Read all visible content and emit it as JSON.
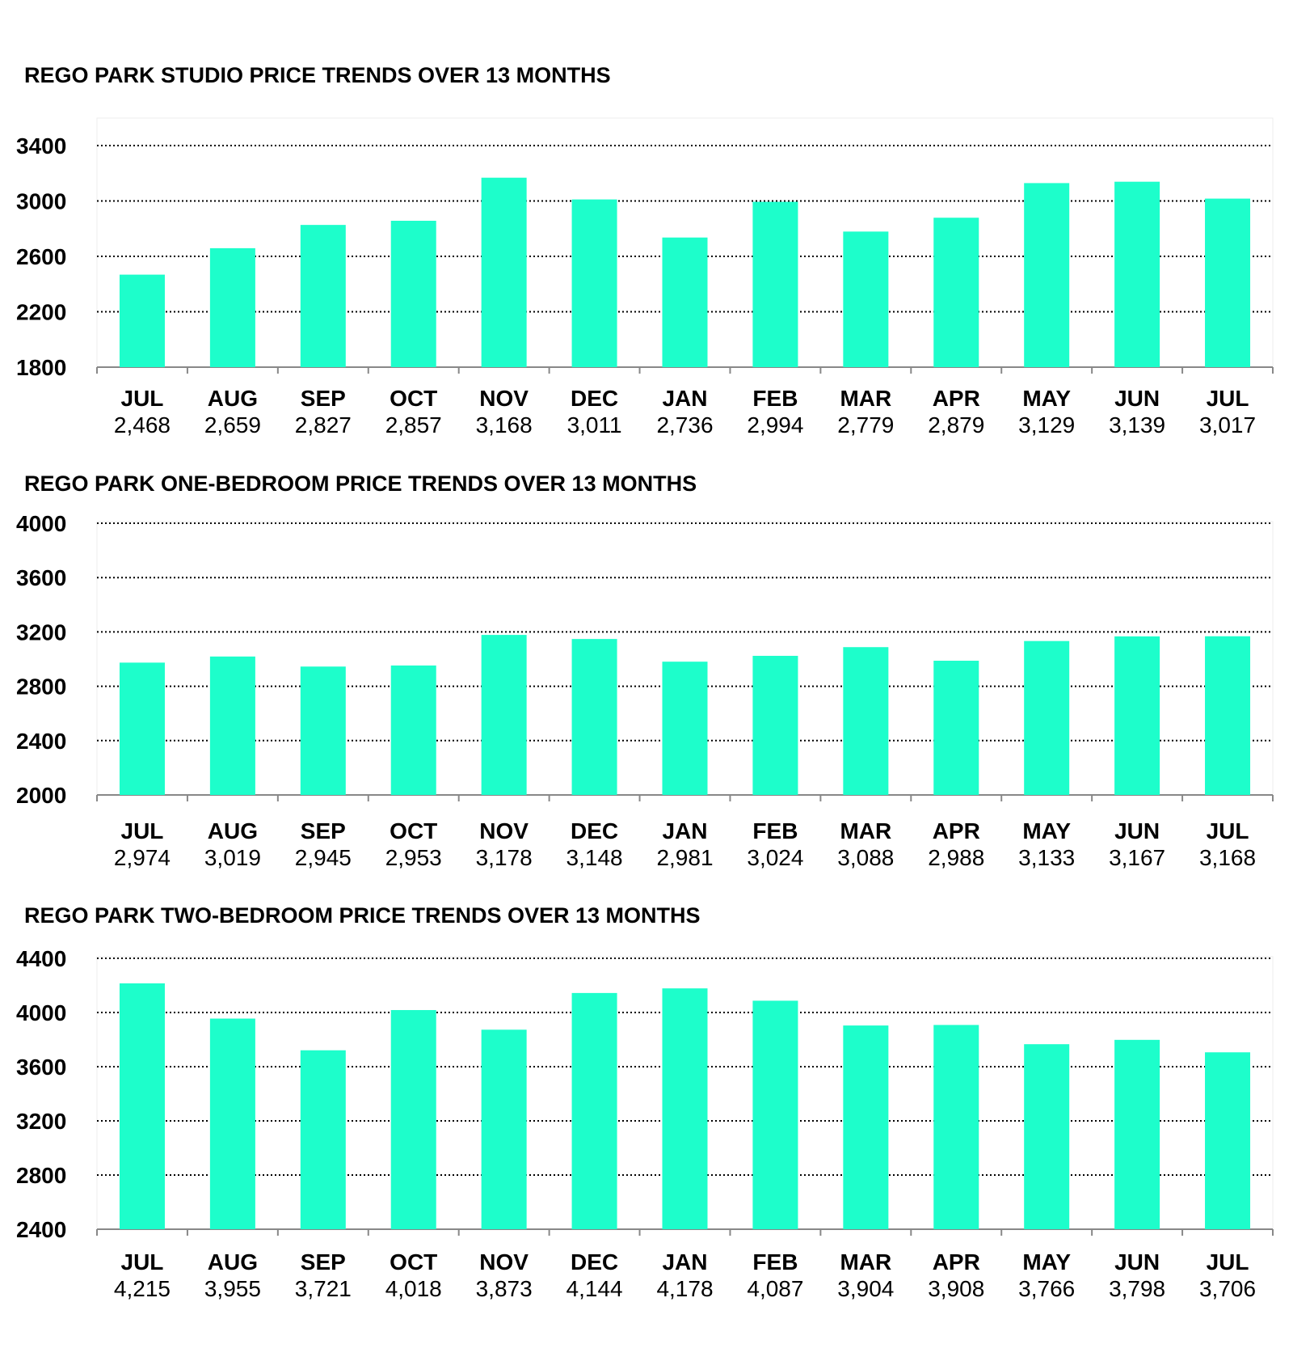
{
  "colors": {
    "bar": "#1dfecb",
    "grid": "#000000",
    "axis": "#888888"
  },
  "chart_data": [
    {
      "type": "bar",
      "title": "REGO PARK STUDIO PRICE TRENDS OVER 13 MONTHS",
      "categories": [
        "JUL",
        "AUG",
        "SEP",
        "OCT",
        "NOV",
        "DEC",
        "JAN",
        "FEB",
        "MAR",
        "APR",
        "MAY",
        "JUN",
        "JUL"
      ],
      "values": [
        2468,
        2659,
        2827,
        2857,
        3168,
        3011,
        2736,
        2994,
        2779,
        2879,
        3129,
        3139,
        3017
      ],
      "value_labels": [
        "2,468",
        "2,659",
        "2,827",
        "2,857",
        "3,168",
        "3,011",
        "2,736",
        "2,994",
        "2,779",
        "2,879",
        "3,129",
        "3,139",
        "3,017"
      ],
      "ylim": [
        1800,
        3400
      ],
      "yticks": [
        1800,
        2200,
        2600,
        3000,
        3400
      ],
      "grid": true,
      "legend": "none"
    },
    {
      "type": "bar",
      "title": "REGO PARK ONE-BEDROOM PRICE TRENDS OVER 13 MONTHS",
      "categories": [
        "JUL",
        "AUG",
        "SEP",
        "OCT",
        "NOV",
        "DEC",
        "JAN",
        "FEB",
        "MAR",
        "APR",
        "MAY",
        "JUN",
        "JUL"
      ],
      "values": [
        2974,
        3019,
        2945,
        2953,
        3178,
        3148,
        2981,
        3024,
        3088,
        2988,
        3133,
        3167,
        3168
      ],
      "value_labels": [
        "2,974",
        "3,019",
        "2,945",
        "2,953",
        "3,178",
        "3,148",
        "2,981",
        "3,024",
        "3,088",
        "2,988",
        "3,133",
        "3,167",
        "3,168"
      ],
      "ylim": [
        2000,
        4000
      ],
      "yticks": [
        2000,
        2400,
        2800,
        3200,
        3600,
        4000
      ],
      "grid": true,
      "legend": "none"
    },
    {
      "type": "bar",
      "title": "REGO PARK TWO-BEDROOM PRICE TRENDS OVER 13 MONTHS",
      "categories": [
        "JUL",
        "AUG",
        "SEP",
        "OCT",
        "NOV",
        "DEC",
        "JAN",
        "FEB",
        "MAR",
        "APR",
        "MAY",
        "JUN",
        "JUL"
      ],
      "values": [
        4215,
        3955,
        3721,
        4018,
        3873,
        4144,
        4178,
        4087,
        3904,
        3908,
        3766,
        3798,
        3706
      ],
      "value_labels": [
        "4,215",
        "3,955",
        "3,721",
        "4,018",
        "3,873",
        "4,144",
        "4,178",
        "4,087",
        "3,904",
        "3,908",
        "3,766",
        "3,798",
        "3,706"
      ],
      "ylim": [
        2400,
        4400
      ],
      "yticks": [
        2400,
        2800,
        3200,
        3600,
        4000,
        4400
      ],
      "grid": true,
      "legend": "none"
    }
  ]
}
